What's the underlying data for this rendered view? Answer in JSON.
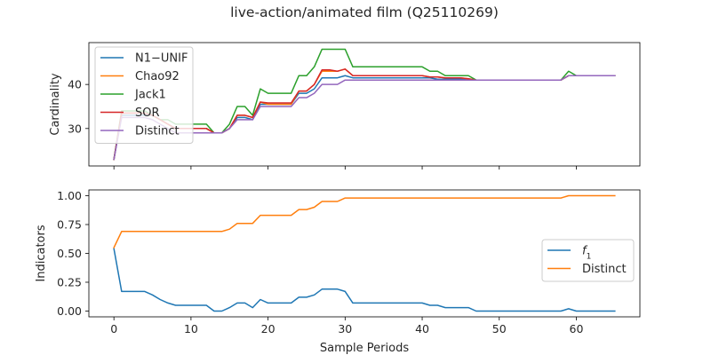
{
  "figure": {
    "title": "live-action/animated film (Q25110269)"
  },
  "chart_data": [
    {
      "type": "line",
      "ylabel": "Cardinality",
      "xlabel": "",
      "xlim": [
        -3.25,
        68.25
      ],
      "ylim": [
        21.5,
        49.5
      ],
      "yticks": [
        30,
        40
      ],
      "xticks": [
        0,
        10,
        20,
        30,
        40,
        50,
        60
      ],
      "show_xtick_labels": false,
      "legend_position": "upper-left",
      "series": [
        {
          "name": "N1−UNIF",
          "color": "#1f77b4",
          "x": [
            0,
            1,
            2,
            3,
            4,
            5,
            6,
            7,
            8,
            9,
            10,
            11,
            12,
            13,
            14,
            15,
            16,
            17,
            18,
            19,
            20,
            21,
            22,
            23,
            24,
            25,
            26,
            27,
            28,
            29,
            30,
            31,
            32,
            33,
            34,
            35,
            36,
            37,
            38,
            39,
            40,
            41,
            42,
            43,
            44,
            45,
            46,
            47,
            48,
            49,
            50,
            51,
            52,
            53,
            54,
            55,
            56,
            57,
            58,
            59,
            60,
            61,
            62,
            63,
            64,
            65
          ],
          "y": [
            23,
            33,
            33,
            33,
            33,
            33,
            32,
            31,
            30,
            30,
            30,
            30,
            30,
            29,
            29,
            30,
            32.5,
            32.5,
            32,
            35.5,
            35.5,
            35.5,
            35.5,
            35.5,
            38,
            38,
            39,
            41.5,
            41.5,
            41.5,
            42,
            41.5,
            41.5,
            41.5,
            41.5,
            41.5,
            41.5,
            41.5,
            41.5,
            41.5,
            41.5,
            41.5,
            41.2,
            41.2,
            41.2,
            41.2,
            41.2,
            41,
            41,
            41,
            41,
            41,
            41,
            41,
            41,
            41,
            41,
            41,
            41,
            42,
            42,
            42,
            42,
            42,
            42,
            42
          ]
        },
        {
          "name": "Chao92",
          "color": "#ff7f0e",
          "x": [
            0,
            1,
            2,
            3,
            4,
            5,
            6,
            7,
            8,
            9,
            10,
            11,
            12,
            13,
            14,
            15,
            16,
            17,
            18,
            19,
            20,
            21,
            22,
            23,
            24,
            25,
            26,
            27,
            28,
            29,
            30,
            31,
            32,
            33,
            34,
            35,
            36,
            37,
            38,
            39,
            40,
            41,
            42,
            43,
            44,
            45,
            46,
            47,
            48,
            49,
            50,
            51,
            52,
            53,
            54,
            55,
            56,
            57,
            58,
            59,
            60,
            61,
            62,
            63,
            64,
            65
          ],
          "y": [
            23,
            33.5,
            33.5,
            33.5,
            33.5,
            33,
            32,
            31,
            30,
            30,
            30,
            30,
            30,
            29,
            29,
            30,
            33,
            33,
            32.5,
            36,
            35.5,
            35.5,
            35.5,
            35.5,
            38.5,
            38.5,
            40,
            43,
            43,
            43,
            43.5,
            42,
            42,
            42,
            42,
            42,
            42,
            42,
            42,
            42,
            42,
            41.7,
            41.7,
            41.5,
            41.5,
            41.5,
            41.3,
            41,
            41,
            41,
            41,
            41,
            41,
            41,
            41,
            41,
            41,
            41,
            41,
            42,
            42,
            42,
            42,
            42,
            42,
            42
          ]
        },
        {
          "name": "Jack1",
          "color": "#2ca02c",
          "x": [
            0,
            1,
            2,
            3,
            4,
            5,
            6,
            7,
            8,
            9,
            10,
            11,
            12,
            13,
            14,
            15,
            16,
            17,
            18,
            19,
            20,
            21,
            22,
            23,
            24,
            25,
            26,
            27,
            28,
            29,
            30,
            31,
            32,
            33,
            34,
            35,
            36,
            37,
            38,
            39,
            40,
            41,
            42,
            43,
            44,
            45,
            46,
            47,
            48,
            49,
            50,
            51,
            52,
            53,
            54,
            55,
            56,
            57,
            58,
            59,
            60,
            61,
            62,
            63,
            64,
            65
          ],
          "y": [
            23,
            34,
            34,
            34,
            34,
            33,
            32,
            32,
            31,
            31,
            31,
            31,
            31,
            29,
            29,
            31,
            35,
            35,
            33,
            39,
            38,
            38,
            38,
            38,
            42,
            42,
            44,
            48,
            48,
            48,
            48,
            44,
            44,
            44,
            44,
            44,
            44,
            44,
            44,
            44,
            44,
            43,
            43,
            42,
            42,
            42,
            42,
            41,
            41,
            41,
            41,
            41,
            41,
            41,
            41,
            41,
            41,
            41,
            41,
            43,
            42,
            42,
            42,
            42,
            42,
            42
          ]
        },
        {
          "name": "SOR",
          "color": "#d62728",
          "x": [
            0,
            1,
            2,
            3,
            4,
            5,
            6,
            7,
            8,
            9,
            10,
            11,
            12,
            13,
            14,
            15,
            16,
            17,
            18,
            19,
            20,
            21,
            22,
            23,
            24,
            25,
            26,
            27,
            28,
            29,
            30,
            31,
            32,
            33,
            34,
            35,
            36,
            37,
            38,
            39,
            40,
            41,
            42,
            43,
            44,
            45,
            46,
            47,
            48,
            49,
            50,
            51,
            52,
            53,
            54,
            55,
            56,
            57,
            58,
            59,
            60,
            61,
            62,
            63,
            64,
            65
          ],
          "y": [
            23,
            33.5,
            33.5,
            33.5,
            33.5,
            33,
            32,
            31,
            30,
            30,
            30,
            30,
            30,
            29,
            29,
            30,
            33,
            33,
            32.5,
            36,
            35.8,
            35.8,
            35.8,
            35.8,
            38.5,
            38.5,
            40,
            43.3,
            43.3,
            43,
            43.5,
            42,
            42,
            42,
            42,
            42,
            42,
            42,
            42,
            42,
            42,
            41.7,
            41.7,
            41.5,
            41.5,
            41.5,
            41.3,
            41,
            41,
            41,
            41,
            41,
            41,
            41,
            41,
            41,
            41,
            41,
            41,
            42,
            42,
            42,
            42,
            42,
            42,
            42
          ]
        },
        {
          "name": "Distinct",
          "color": "#9467bd",
          "x": [
            0,
            1,
            2,
            3,
            4,
            5,
            6,
            7,
            8,
            9,
            10,
            11,
            12,
            13,
            14,
            15,
            16,
            17,
            18,
            19,
            20,
            21,
            22,
            23,
            24,
            25,
            26,
            27,
            28,
            29,
            30,
            31,
            32,
            33,
            34,
            35,
            36,
            37,
            38,
            39,
            40,
            41,
            42,
            43,
            44,
            45,
            46,
            47,
            48,
            49,
            50,
            51,
            52,
            53,
            54,
            55,
            56,
            57,
            58,
            59,
            60,
            61,
            62,
            63,
            64,
            65
          ],
          "y": [
            23,
            32.5,
            32.5,
            32.5,
            32.5,
            32,
            31,
            30,
            29,
            29,
            29,
            29,
            29,
            29,
            29,
            30,
            32,
            32,
            32,
            35,
            35,
            35,
            35,
            35,
            37,
            37,
            38,
            40,
            40,
            40,
            41,
            41,
            41,
            41,
            41,
            41,
            41,
            41,
            41,
            41,
            41,
            41,
            41,
            41,
            41,
            41,
            41,
            41,
            41,
            41,
            41,
            41,
            41,
            41,
            41,
            41,
            41,
            41,
            41,
            42,
            42,
            42,
            42,
            42,
            42,
            42
          ]
        }
      ]
    },
    {
      "type": "line",
      "xlabel": "Sample Periods",
      "ylabel": "Indicators",
      "xlim": [
        -3.25,
        68.25
      ],
      "ylim": [
        -0.05,
        1.05
      ],
      "yticks": [
        0.0,
        0.25,
        0.5,
        0.75,
        1.0
      ],
      "ytick_labels": [
        "0.00",
        "0.25",
        "0.50",
        "0.75",
        "1.00"
      ],
      "xticks": [
        0,
        10,
        20,
        30,
        40,
        50,
        60
      ],
      "xtick_labels": [
        "0",
        "10",
        "20",
        "30",
        "40",
        "50",
        "60"
      ],
      "legend_position": "center-right",
      "series": [
        {
          "name": "f1",
          "color": "#1f77b4",
          "x": [
            0,
            1,
            2,
            3,
            4,
            5,
            6,
            7,
            8,
            9,
            10,
            11,
            12,
            13,
            14,
            15,
            16,
            17,
            18,
            19,
            20,
            21,
            22,
            23,
            24,
            25,
            26,
            27,
            28,
            29,
            30,
            31,
            32,
            33,
            34,
            35,
            36,
            37,
            38,
            39,
            40,
            41,
            42,
            43,
            44,
            45,
            46,
            47,
            48,
            49,
            50,
            51,
            52,
            53,
            54,
            55,
            56,
            57,
            58,
            59,
            60,
            61,
            62,
            63,
            64,
            65
          ],
          "y": [
            0.54,
            0.17,
            0.17,
            0.17,
            0.17,
            0.14,
            0.1,
            0.07,
            0.05,
            0.05,
            0.05,
            0.05,
            0.05,
            0.0,
            0.0,
            0.03,
            0.07,
            0.07,
            0.03,
            0.1,
            0.07,
            0.07,
            0.07,
            0.07,
            0.12,
            0.12,
            0.14,
            0.19,
            0.19,
            0.19,
            0.17,
            0.07,
            0.07,
            0.07,
            0.07,
            0.07,
            0.07,
            0.07,
            0.07,
            0.07,
            0.07,
            0.05,
            0.05,
            0.03,
            0.03,
            0.03,
            0.03,
            0.0,
            0.0,
            0.0,
            0.0,
            0.0,
            0.0,
            0.0,
            0.0,
            0.0,
            0.0,
            0.0,
            0.0,
            0.02,
            0.0,
            0.0,
            0.0,
            0.0,
            0.0,
            0.0
          ]
        },
        {
          "name": "Distinct",
          "color": "#ff7f0e",
          "x": [
            0,
            1,
            2,
            3,
            4,
            5,
            6,
            7,
            8,
            9,
            10,
            11,
            12,
            13,
            14,
            15,
            16,
            17,
            18,
            19,
            20,
            21,
            22,
            23,
            24,
            25,
            26,
            27,
            28,
            29,
            30,
            31,
            32,
            33,
            34,
            35,
            36,
            37,
            38,
            39,
            40,
            41,
            42,
            43,
            44,
            45,
            46,
            47,
            48,
            49,
            50,
            51,
            52,
            53,
            54,
            55,
            56,
            57,
            58,
            59,
            60,
            61,
            62,
            63,
            64,
            65
          ],
          "y": [
            0.55,
            0.69,
            0.69,
            0.69,
            0.69,
            0.69,
            0.69,
            0.69,
            0.69,
            0.69,
            0.69,
            0.69,
            0.69,
            0.69,
            0.69,
            0.71,
            0.76,
            0.76,
            0.76,
            0.83,
            0.83,
            0.83,
            0.83,
            0.83,
            0.88,
            0.88,
            0.9,
            0.95,
            0.95,
            0.95,
            0.98,
            0.98,
            0.98,
            0.98,
            0.98,
            0.98,
            0.98,
            0.98,
            0.98,
            0.98,
            0.98,
            0.98,
            0.98,
            0.98,
            0.98,
            0.98,
            0.98,
            0.98,
            0.98,
            0.98,
            0.98,
            0.98,
            0.98,
            0.98,
            0.98,
            0.98,
            0.98,
            0.98,
            0.98,
            1.0,
            1.0,
            1.0,
            1.0,
            1.0,
            1.0,
            1.0
          ]
        }
      ]
    }
  ]
}
